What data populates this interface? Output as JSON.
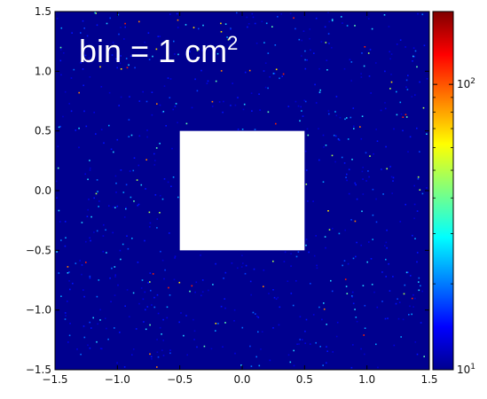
{
  "chart_data": {
    "type": "heatmap",
    "title": "",
    "xlabel": "",
    "ylabel": "",
    "xlim": [
      -1.5,
      1.5
    ],
    "ylim": [
      -1.5,
      1.5
    ],
    "x_ticks": [
      -1.5,
      -1.0,
      -0.5,
      0.0,
      0.5,
      1.0,
      1.5
    ],
    "y_ticks": [
      -1.5,
      -1.0,
      -0.5,
      0.0,
      0.5,
      1.0,
      1.5
    ],
    "x_tick_labels": [
      "−1.5",
      "−1.0",
      "−0.5",
      "0.0",
      "0.5",
      "1.0",
      "1.5"
    ],
    "y_tick_labels": [
      "−1.5",
      "−1.0",
      "−0.5",
      "0.0",
      "0.5",
      "1.0",
      "1.5"
    ],
    "annotation": {
      "text": "bin = 1 cm",
      "superscript": "2"
    },
    "empty_region": {
      "x": [
        -0.5,
        0.5
      ],
      "y": [
        -0.5,
        0.5
      ]
    },
    "background_value": 10,
    "colorbar": {
      "scale": "log",
      "range": [
        10,
        180
      ],
      "tick_values": [
        10,
        100
      ],
      "tick_labels": [
        {
          "base": "10",
          "exp": "1"
        },
        {
          "base": "10",
          "exp": "2"
        }
      ],
      "colormap": "jet"
    },
    "grid": false,
    "legend": "none"
  },
  "colors": {
    "background": "#00008f",
    "empty_region": "#ffffff"
  }
}
